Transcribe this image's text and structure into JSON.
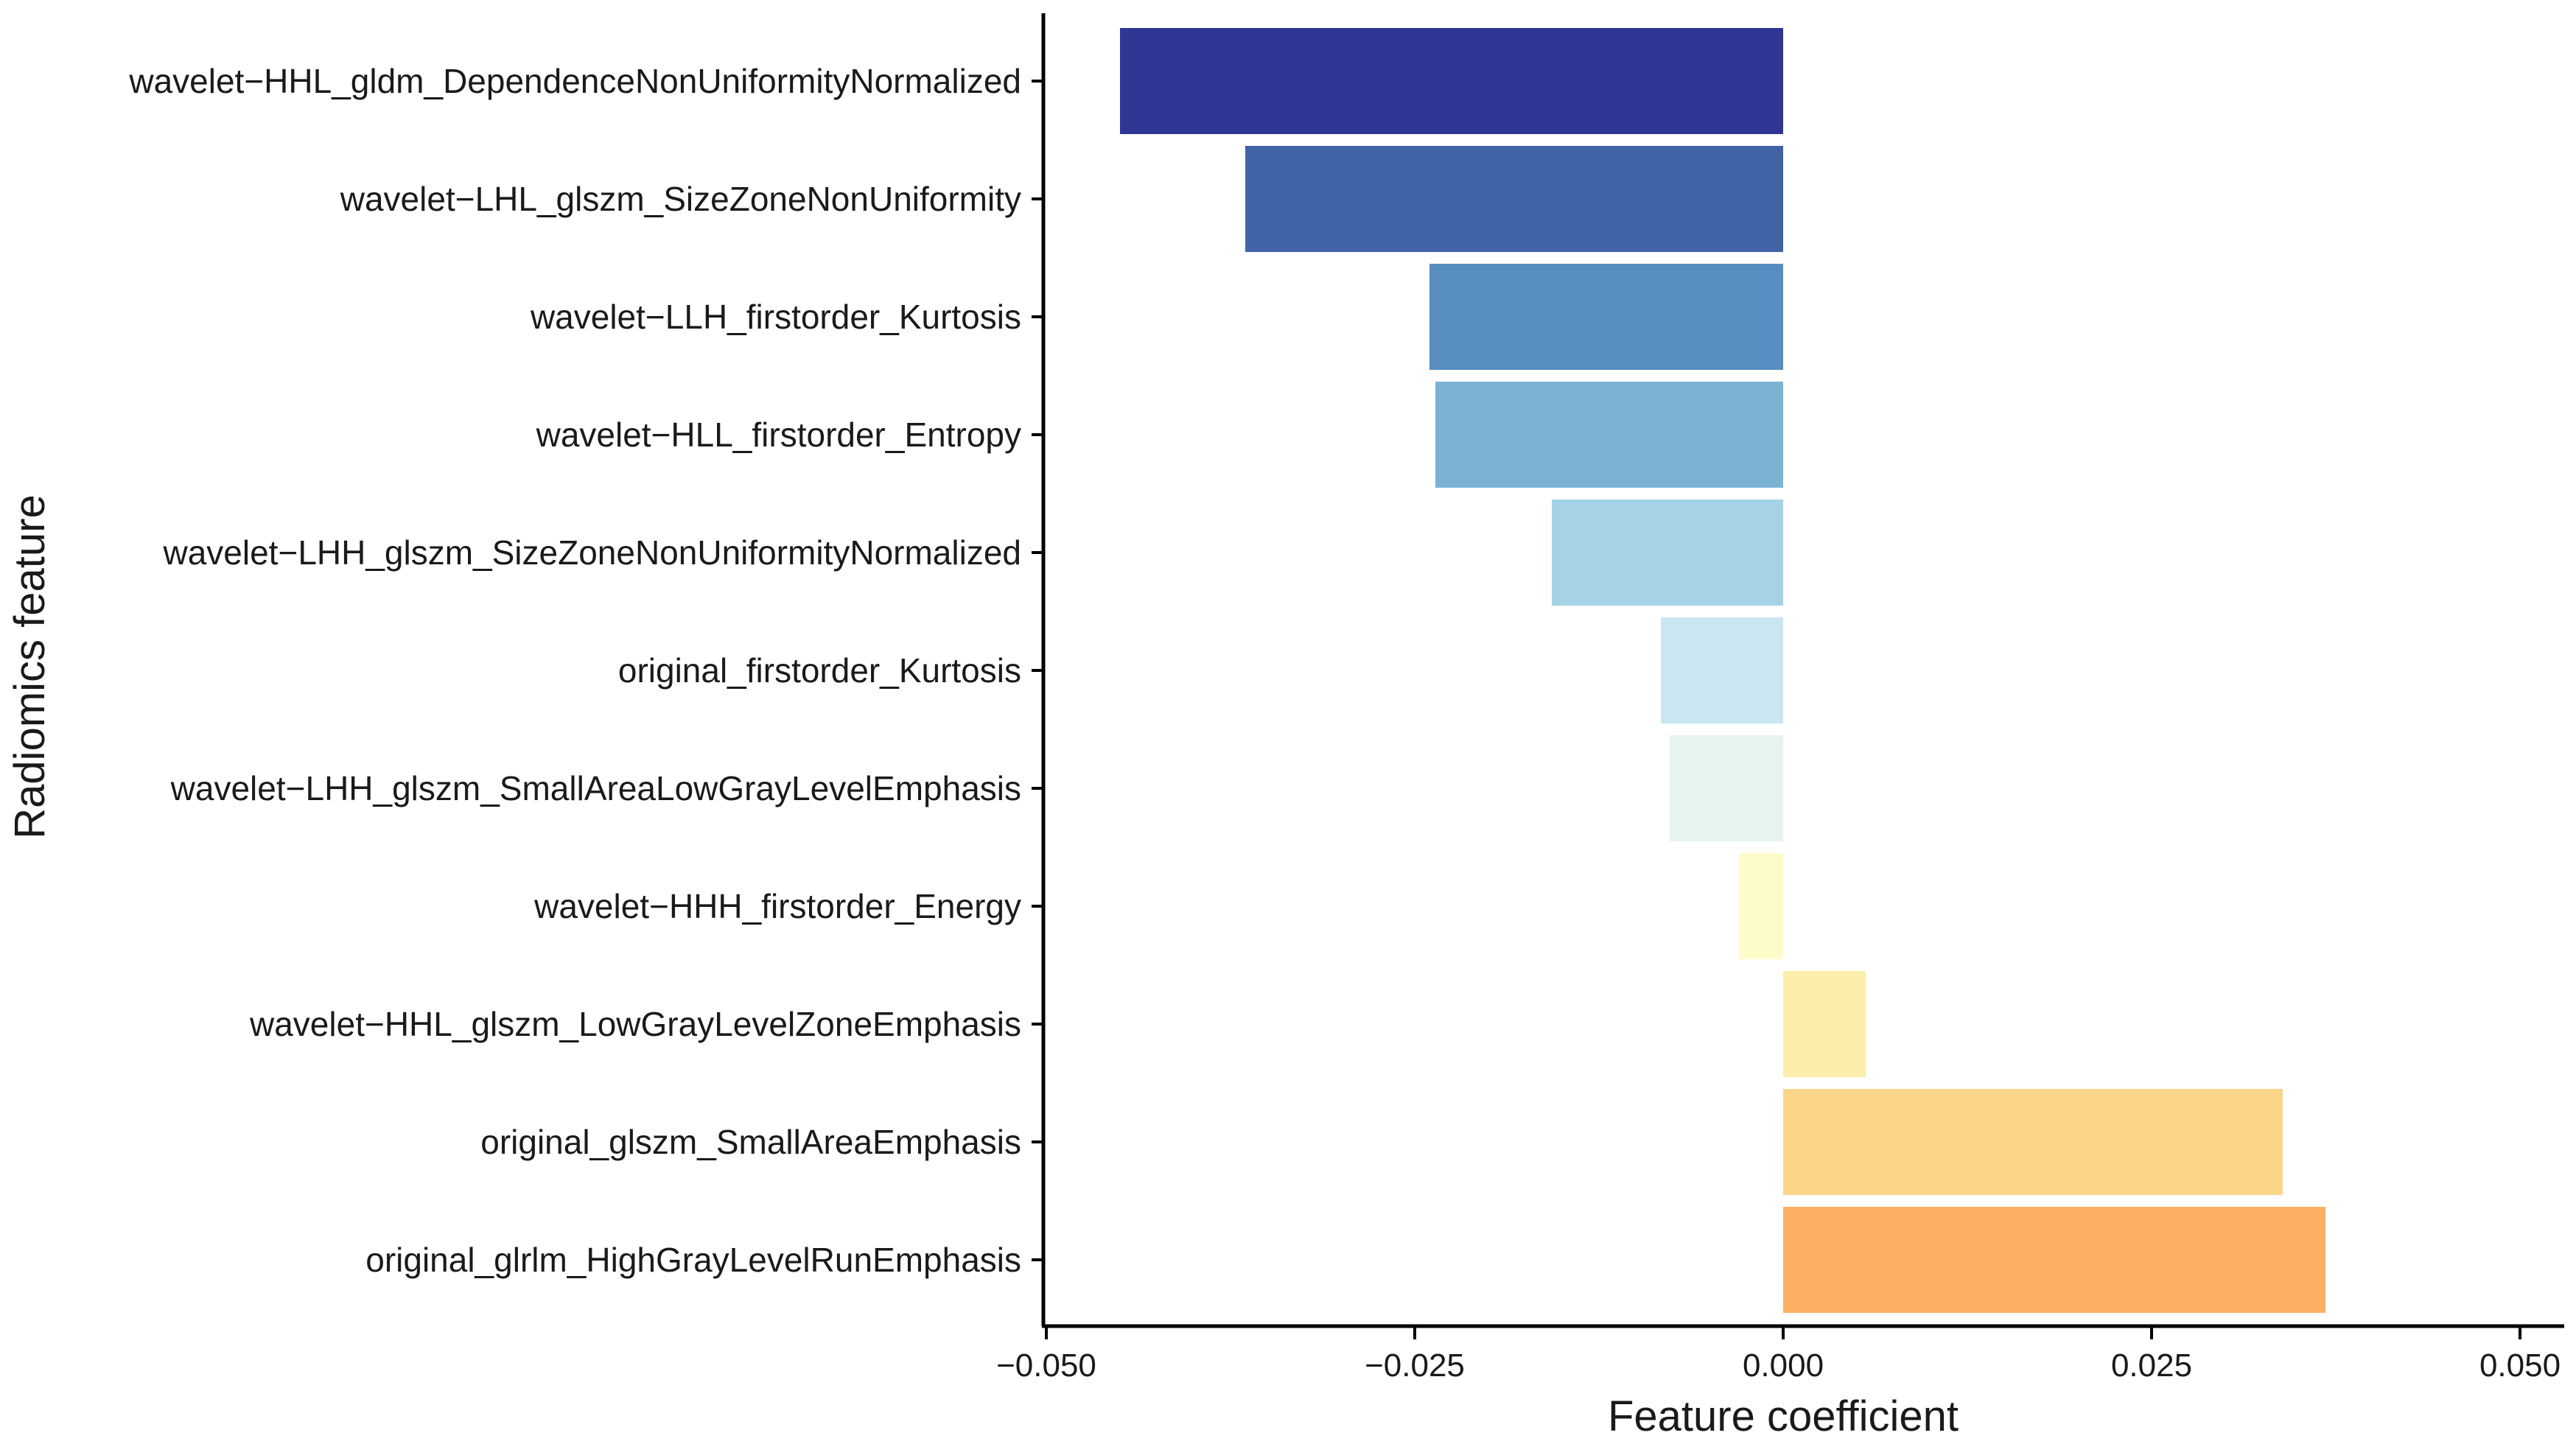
{
  "chart_data": {
    "type": "bar",
    "orientation": "horizontal",
    "xlabel": "Feature coefficient",
    "ylabel": "Radiomics feature",
    "xlim": [
      -0.05,
      0.05
    ],
    "xticks": [
      -0.05,
      -0.025,
      0.0,
      0.025,
      0.05
    ],
    "xtick_labels": [
      "−0.050",
      "−0.025",
      "0.000",
      "0.025",
      "0.050"
    ],
    "grid": false,
    "legend": "none",
    "categories": [
      "wavelet−HHL_gldm_DependenceNonUniformityNormalized",
      "wavelet−LHL_glszm_SizeZoneNonUniformity",
      "wavelet−LLH_firstorder_Kurtosis",
      "wavelet−HLL_firstorder_Entropy",
      "wavelet−LHH_glszm_SizeZoneNonUniformityNormalized",
      "original_firstorder_Kurtosis",
      "wavelet−LHH_glszm_SmallAreaLowGrayLevelEmphasis",
      "wavelet−HHH_firstorder_Energy",
      "wavelet−HHL_glszm_LowGrayLevelZoneEmphasis",
      "original_glszm_SmallAreaEmphasis",
      "original_glrlm_HighGrayLevelRunEmphasis"
    ],
    "values": [
      -0.045,
      -0.0365,
      -0.024,
      -0.0236,
      -0.0157,
      -0.0083,
      -0.0077,
      -0.003,
      0.0056,
      0.0339,
      0.0368
    ],
    "colors": [
      "#313695",
      "#4063a8",
      "#578dc0",
      "#7cb3d4",
      "#a5d2e6",
      "#c9e6f1",
      "#e6f4ee",
      "#fbfcca",
      "#fdedab",
      "#fcd48a",
      "#fbb063"
    ]
  }
}
